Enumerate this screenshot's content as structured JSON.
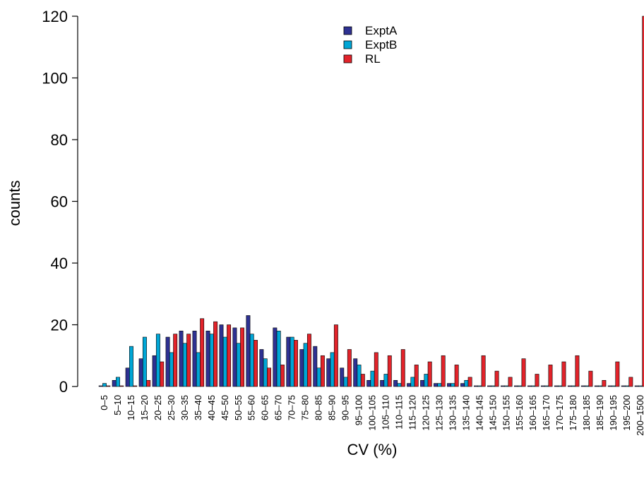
{
  "chart_data": {
    "type": "bar",
    "xlabel": "CV (%)",
    "ylabel": "counts",
    "ylim": [
      0,
      120
    ],
    "yticks": [
      0,
      20,
      40,
      60,
      80,
      100,
      120
    ],
    "grid": false,
    "legend_position": "top-center",
    "categories": [
      "0–5",
      "5–10",
      "10–15",
      "15–20",
      "20–25",
      "25–30",
      "30–35",
      "35–40",
      "40–45",
      "45–50",
      "50–55",
      "55–60",
      "60–65",
      "65–70",
      "70–75",
      "75–80",
      "80–85",
      "85–90",
      "90–95",
      "95–100",
      "100–105",
      "105–110",
      "110–115",
      "115–120",
      "120–125",
      "125–130",
      "130–135",
      "135–140",
      "140–145",
      "145–150",
      "150–155",
      "155–160",
      "160–165",
      "165–170",
      "170–175",
      "175–180",
      "180–185",
      "185–190",
      "190–195",
      "195–200",
      "200–1500"
    ],
    "series": [
      {
        "name": "ExptA",
        "color": "#2E3192",
        "values": [
          0,
          2,
          6,
          9,
          10,
          16,
          18,
          18,
          18,
          20,
          19,
          23,
          12,
          19,
          16,
          12,
          13,
          9,
          6,
          9,
          2,
          2,
          2,
          1,
          2,
          1,
          1,
          1,
          0,
          0,
          0,
          0,
          0,
          0,
          0,
          0,
          0,
          0,
          0,
          0,
          0
        ]
      },
      {
        "name": "ExptB",
        "color": "#00A6D6",
        "values": [
          1,
          3,
          13,
          16,
          17,
          11,
          14,
          11,
          17,
          16,
          14,
          17,
          9,
          18,
          16,
          14,
          6,
          11,
          3,
          7,
          5,
          4,
          1,
          3,
          4,
          1,
          1,
          2,
          0,
          0,
          0,
          0,
          0,
          0,
          0,
          0,
          0,
          0,
          0,
          0,
          0
        ]
      },
      {
        "name": "RL",
        "color": "#E2232A",
        "values": [
          0,
          0,
          0,
          2,
          8,
          17,
          17,
          22,
          21,
          20,
          19,
          15,
          6,
          7,
          15,
          17,
          10,
          20,
          12,
          4,
          11,
          10,
          12,
          7,
          8,
          10,
          7,
          3,
          10,
          5,
          3,
          9,
          4,
          7,
          8,
          10,
          5,
          2,
          8,
          3,
          120
        ]
      }
    ]
  }
}
